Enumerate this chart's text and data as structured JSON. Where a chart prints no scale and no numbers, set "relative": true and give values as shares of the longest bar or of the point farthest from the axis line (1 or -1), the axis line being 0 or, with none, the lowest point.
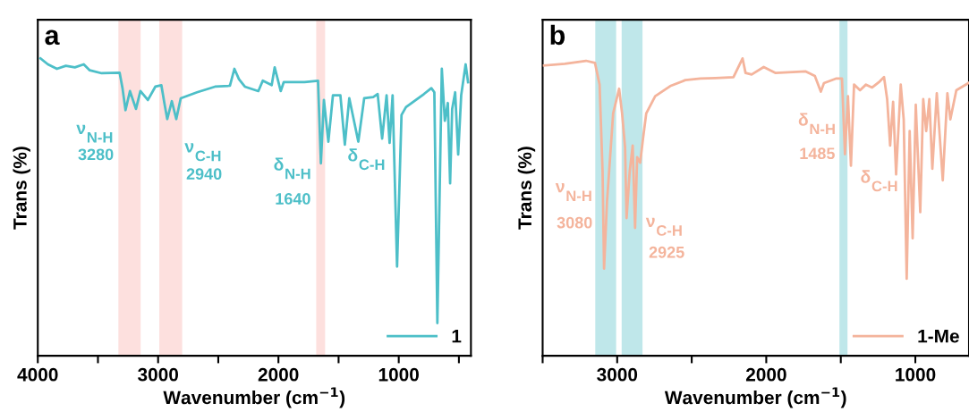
{
  "chart_data": [
    {
      "type": "line",
      "relative": true,
      "xlabel": "Wavenumber (cm$^{−1}$)",
      "ylabel": "Trans (%)",
      "xlim": [
        4000,
        400
      ],
      "xticks": [
        4000,
        {
          "value": 3500,
          "label": null
        },
        3000,
        {
          "value": 2500,
          "label": null
        },
        2000,
        {
          "value": 1500,
          "label": null
        },
        1000,
        {
          "value": 500,
          "label": null
        }
      ],
      "tick_labels": "x",
      "legend": "bottom right",
      "grid": false,
      "series": [
        {
          "name": "1",
          "color": "#4dbfc8",
          "x": [
            3978,
            3916,
            3841,
            3767,
            3692,
            3618,
            3568,
            3469,
            3320,
            3296,
            3271,
            3234,
            3184,
            3147,
            3085,
            3023,
            2973,
            2948,
            2924,
            2886,
            2849,
            2812,
            2676,
            2527,
            2403,
            2366,
            2328,
            2279,
            2167,
            2130,
            2056,
            2031,
            2006,
            1981,
            1956,
            1783,
            1671,
            1647,
            1622,
            1585,
            1547,
            1485,
            1448,
            1411,
            1336,
            1287,
            1212,
            1175,
            1138,
            1101,
            1076,
            1051,
            1014,
            977,
            940,
            791,
            729,
            704,
            679,
            642,
            617,
            592,
            573,
            556,
            531,
            506,
            481,
            444,
            424
          ],
          "values": [
            1.0,
            0.98,
            0.965,
            0.975,
            0.97,
            0.98,
            0.96,
            0.95,
            0.952,
            0.9,
            0.826,
            0.89,
            0.83,
            0.89,
            0.86,
            0.905,
            0.91,
            0.85,
            0.796,
            0.856,
            0.796,
            0.866,
            0.886,
            0.905,
            0.908,
            0.965,
            0.93,
            0.905,
            0.89,
            0.925,
            0.91,
            0.97,
            0.93,
            0.89,
            0.92,
            0.92,
            0.925,
            0.647,
            0.86,
            0.72,
            0.876,
            0.876,
            0.71,
            0.866,
            0.72,
            0.866,
            0.87,
            0.88,
            0.73,
            0.876,
            0.716,
            0.876,
            0.3,
            0.81,
            0.836,
            0.88,
            0.9,
            0.886,
            0.11,
            0.965,
            0.79,
            0.85,
            0.58,
            0.83,
            0.886,
            0.677,
            0.876,
            0.98,
            0.92
          ]
        }
      ],
      "bands": [
        {
          "axis": "x",
          "from": 3330,
          "to": 3145,
          "color": "#fde0de"
        },
        {
          "axis": "x",
          "from": 2990,
          "to": 2800,
          "color": "#fde0de"
        },
        {
          "axis": "x",
          "from": 1686,
          "to": 1612,
          "color": "#fde0de"
        }
      ],
      "annotations": [
        "a",
        "ν$_{N-H}$",
        "3280",
        "ν$_{C-H}$",
        "2940",
        "δ$_{N-H}$",
        "1640",
        "δ$_{C-H}$"
      ]
    },
    {
      "type": "line",
      "relative": true,
      "xlabel": "Wavenumber (cm$^{−1}$)",
      "ylabel": "Trans (%)",
      "xlim": [
        3500,
        640
      ],
      "xticks": [
        {
          "value": 3500,
          "label": null
        },
        3000,
        {
          "value": 2500,
          "label": null
        },
        2000,
        {
          "value": 1500,
          "label": null
        },
        1000
      ],
      "tick_labels": "x",
      "legend": "bottom right",
      "grid": false,
      "series": [
        {
          "name": "1-Me",
          "color": "#f4b49c",
          "x": [
            3492,
            3351,
            3209,
            3149,
            3118,
            3098,
            3088,
            3068,
            3027,
            2987,
            2967,
            2947,
            2937,
            2916,
            2896,
            2880,
            2866,
            2846,
            2825,
            2805,
            2745,
            2644,
            2543,
            2442,
            2341,
            2220,
            2159,
            2139,
            2098,
            2017,
            1937,
            1735,
            1674,
            1634,
            1613,
            1533,
            1492,
            1472,
            1452,
            1432,
            1411,
            1371,
            1331,
            1290,
            1240,
            1210,
            1189,
            1169,
            1149,
            1129,
            1098,
            1078,
            1058,
            1038,
            1018,
            997,
            967,
            947,
            927,
            906,
            886,
            856,
            816,
            785,
            765,
            725,
            644
          ],
          "values": [
            0.976,
            0.982,
            0.992,
            0.985,
            0.912,
            0.62,
            0.293,
            0.52,
            0.815,
            0.898,
            0.815,
            0.7,
            0.463,
            0.62,
            0.707,
            0.43,
            0.668,
            0.649,
            0.737,
            0.815,
            0.873,
            0.907,
            0.927,
            0.932,
            0.934,
            0.937,
            1.0,
            0.951,
            0.946,
            0.971,
            0.951,
            0.956,
            0.941,
            0.888,
            0.917,
            0.932,
            0.932,
            0.678,
            0.873,
            0.639,
            0.912,
            0.893,
            0.912,
            0.902,
            0.922,
            0.937,
            0.863,
            0.707,
            0.854,
            0.61,
            0.912,
            0.795,
            0.259,
            0.756,
            0.395,
            0.844,
            0.483,
            0.863,
            0.756,
            0.863,
            0.629,
            0.883,
            0.59,
            0.883,
            0.795,
            0.893,
            0.917
          ]
        }
      ],
      "bands": [
        {
          "axis": "x",
          "from": 3147,
          "to": 3007,
          "color": "#bfe7ea"
        },
        {
          "axis": "x",
          "from": 2970,
          "to": 2830,
          "color": "#bfe7ea"
        },
        {
          "axis": "x",
          "from": 1509,
          "to": 1455,
          "color": "#bfe7ea"
        }
      ],
      "annotations": [
        "b",
        "ν$_{N-H}$",
        "3080",
        "ν$_{C-H}$",
        "2925",
        "δ$_{N-H}$",
        "1485",
        "δ$_{C-H}$"
      ]
    }
  ]
}
